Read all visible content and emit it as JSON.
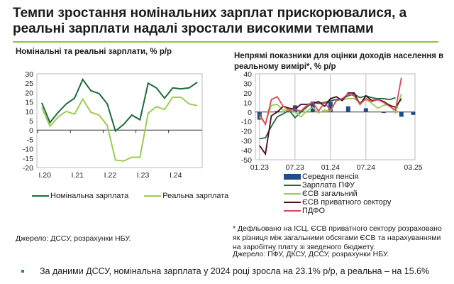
{
  "title": "Темпи зростання номінальних зарплат прискорювалися, а реальні зарплати надалі зростали високими темпами",
  "left": {
    "source": "Джерело: ДССУ, розрахунки НБУ."
  },
  "right": {
    "note": "* Дефльовано на ІСЦ. ЄСВ приватного сектору розраховано як різниця між загальними обсягами ЄСВ та нарахуваннями на заробітну плату зі зведеного бюджету.",
    "source": "Джерело: ПФУ, ДКСУ, ДССУ, розрахунки НБУ."
  },
  "bullet": "За даними ДССУ, номінальна зарплата у 2024 році зросла на 23.1% р/р, а реальна – на 15.6%",
  "colors": {
    "accent": "#8dc63f",
    "nominal": "#1e6b3a",
    "real": "#9ccc52",
    "pension": "#1f4e8c",
    "pfu": "#1e6b3a",
    "esv": "#9ccc52",
    "esv_private": "#4a0a1e",
    "pdfo": "#d9485f"
  },
  "chart_data": [
    {
      "type": "line",
      "title": "Номінальні та реальні зарплати, % р/р",
      "ylim": [
        -20,
        30
      ],
      "yticks": [
        30,
        25,
        20,
        15,
        10,
        5,
        0,
        -5,
        -10,
        -15,
        -20
      ],
      "xticklabels": [
        "I.20",
        "I.21",
        "I.22",
        "I.23",
        "I.24"
      ],
      "x": [
        "I.20",
        "II.20",
        "III.20",
        "IV.20",
        "I.21",
        "II.21",
        "III.21",
        "IV.21",
        "I.22",
        "II.22",
        "III.22",
        "IV.22",
        "I.23",
        "II.23",
        "III.23",
        "IV.23",
        "I.24",
        "II.24",
        "III.24",
        "IV.24"
      ],
      "series": [
        {
          "name": "Номінальна зарплата",
          "color": "#1e6b3a",
          "values": [
            14.5,
            4,
            9.5,
            14,
            17,
            27,
            21,
            19.5,
            14,
            -0.5,
            3,
            8,
            5.5,
            25,
            22.5,
            17,
            22.5,
            22,
            22.5,
            25.5
          ]
        },
        {
          "name": "Реальна зарплата",
          "color": "#9ccc52",
          "values": [
            12,
            2,
            7,
            10,
            8.5,
            16.5,
            9.5,
            8,
            2.5,
            -16,
            -16.5,
            -14.5,
            -14.5,
            9,
            12.5,
            11,
            17.5,
            17.5,
            14,
            13
          ]
        }
      ],
      "legend": "bottom"
    },
    {
      "type": "line+bar",
      "title": "Непрямі показники для оцінки доходів населення в реальному вимірі*, % р/р",
      "ylim": [
        -50,
        40
      ],
      "yticks": [
        40,
        30,
        20,
        10,
        0,
        -10,
        -20,
        -30,
        -40,
        -50
      ],
      "xticklabels": [
        "01.23",
        "07.23",
        "01.24",
        "07.24",
        "03.25"
      ],
      "bars": {
        "name": "Середня пенсія",
        "color": "#1f4e8c",
        "months": [
          "01.23",
          "04.23",
          "07.23",
          "10.23",
          "01.24",
          "04.24",
          "07.24",
          "10.24",
          "01.25",
          "03.25"
        ],
        "values": [
          -8,
          1,
          7,
          11,
          11,
          6,
          4,
          -1,
          -5,
          -3
        ]
      },
      "series": [
        {
          "name": "Зарплата ПФУ",
          "color": "#1e6b3a",
          "values": [
            -28,
            -27,
            -15,
            -5,
            -2,
            2,
            -6,
            0,
            5,
            10,
            9,
            10,
            12,
            13,
            14,
            17,
            19,
            15,
            17,
            15,
            14,
            14,
            13,
            15
          ]
        },
        {
          "name": "ЄСВ загальний",
          "color": "#9ccc52",
          "values": [
            -5,
            -12,
            7,
            8,
            2,
            2,
            0,
            -5,
            1,
            5,
            -1,
            2,
            1,
            12,
            13,
            14,
            14,
            10,
            13,
            9,
            4,
            7,
            8,
            -1,
            19
          ]
        },
        {
          "name": "ЄСВ приватного сектору",
          "color": "#4a0a1e",
          "values": [
            -35,
            -44,
            -4,
            0,
            6,
            4,
            3,
            8,
            8,
            9,
            11,
            6,
            14,
            16,
            12,
            20,
            20,
            8,
            17,
            12,
            13,
            11,
            7,
            5,
            14
          ]
        },
        {
          "name": "ПДФО",
          "color": "#d9485f",
          "values": [
            -2,
            -13,
            13,
            16,
            6,
            2,
            3,
            1,
            7,
            10,
            1,
            10,
            2,
            12,
            14,
            19,
            17,
            8,
            14,
            11,
            13,
            10,
            6,
            2,
            36
          ]
        }
      ],
      "legend": "bottom"
    }
  ]
}
